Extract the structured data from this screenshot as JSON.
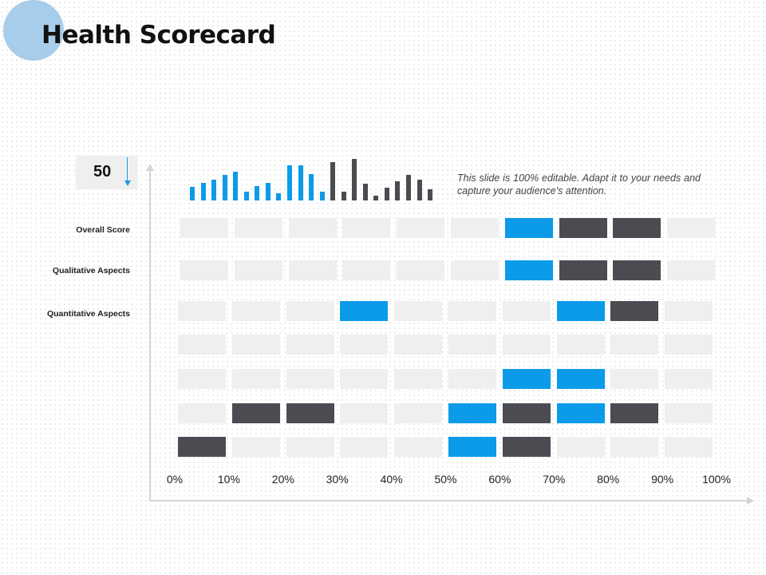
{
  "title": "Health Scorecard",
  "score": {
    "value": "50",
    "trend": "down"
  },
  "note": "This slide is 100% editable. Adapt it to your needs and capture your audience's attention.",
  "row_labels": [
    "Overall Score",
    "Qualitative Aspects",
    "Quantitative Aspects"
  ],
  "axis": {
    "ticks": [
      "0%",
      "10%",
      "20%",
      "30%",
      "40%",
      "50%",
      "60%",
      "70%",
      "80%",
      "90%",
      "100%"
    ]
  },
  "colors": {
    "blue": "#0b9be8",
    "dark": "#4a4c51",
    "light": "#efefef",
    "axis": "#d4d4d4",
    "accent_circle": "#a8cdea"
  },
  "grid": [
    [
      "light",
      "light",
      "light",
      "light",
      "light",
      "light",
      "blue",
      "dark",
      "dark",
      "light"
    ],
    [
      "light",
      "light",
      "light",
      "light",
      "light",
      "light",
      "blue",
      "dark",
      "dark",
      "light"
    ],
    [
      "light",
      "light",
      "light",
      "blue",
      "light",
      "light",
      "light",
      "blue",
      "dark",
      "light"
    ],
    [
      "light",
      "light",
      "light",
      "light",
      "light",
      "light",
      "light",
      "light",
      "light",
      "light"
    ],
    [
      "light",
      "light",
      "light",
      "light",
      "light",
      "light",
      "blue",
      "blue",
      "light",
      "light"
    ],
    [
      "light",
      "dark",
      "dark",
      "light",
      "light",
      "blue",
      "dark",
      "blue",
      "dark",
      "light"
    ],
    [
      "dark",
      "light",
      "light",
      "light",
      "light",
      "blue",
      "dark",
      "light",
      "light",
      "light"
    ]
  ],
  "sparkline": {
    "values": [
      17,
      22,
      26,
      32,
      36,
      11,
      18,
      22,
      9,
      44,
      44,
      33,
      11,
      48,
      11,
      52,
      21,
      6,
      16,
      24,
      32,
      26,
      14
    ],
    "colors": [
      "blue",
      "blue",
      "blue",
      "blue",
      "blue",
      "blue",
      "blue",
      "blue",
      "blue",
      "blue",
      "blue",
      "blue",
      "blue",
      "dark",
      "dark",
      "dark",
      "dark",
      "dark",
      "dark",
      "dark",
      "dark",
      "dark",
      "dark"
    ]
  }
}
